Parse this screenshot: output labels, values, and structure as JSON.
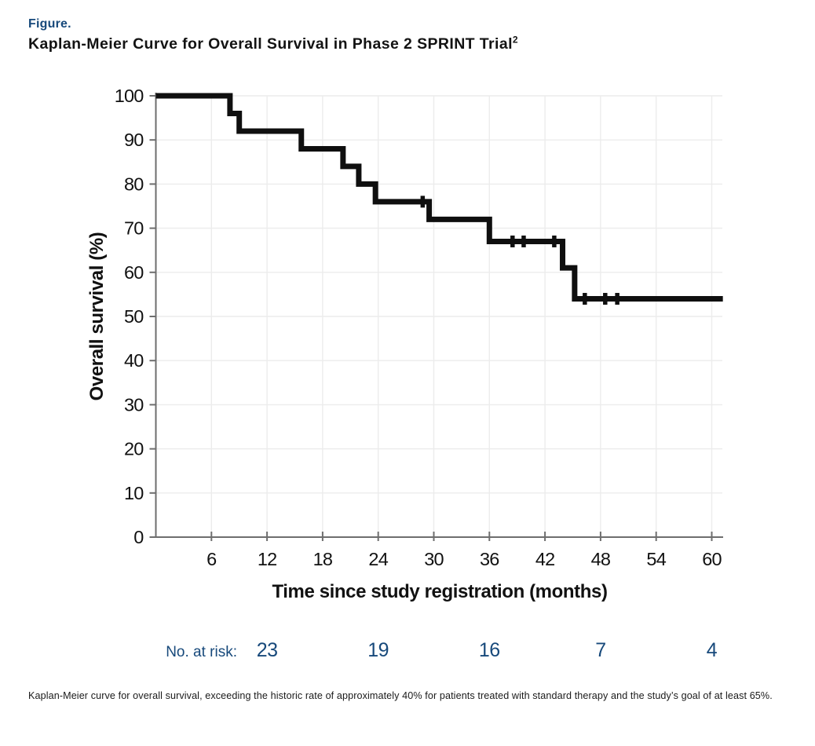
{
  "figure": {
    "label": "Figure.",
    "title": "Kaplan-Meier Curve for Overall Survival in Phase 2 SPRINT Trial",
    "title_reference_superscript": "2",
    "caption": "Kaplan-Meier curve for overall survival, exceeding the historic rate of approximately 40% for patients treated with standard therapy and the study’s goal of at least 65%."
  },
  "colors": {
    "accent_navy": "#17497B",
    "curve_black": "#0F0F0F",
    "gridline_gray": "#ECECEC",
    "axis_gray": "#6E6E6E"
  },
  "chart_data": {
    "type": "line",
    "step": "post",
    "title": "Kaplan-Meier Curve for Overall Survival in Phase 2 SPRINT Trial",
    "xlabel": "Time since study registration (months)",
    "ylabel": "Overall survival (%)",
    "xlim": [
      0,
      61.5
    ],
    "ylim": [
      0,
      100
    ],
    "x_ticks": [
      6,
      12,
      18,
      24,
      30,
      36,
      42,
      48,
      54,
      60
    ],
    "y_ticks": [
      0,
      10,
      20,
      30,
      40,
      50,
      60,
      70,
      80,
      90,
      100
    ],
    "grid": true,
    "legend": "none",
    "series": [
      {
        "name": "Overall survival",
        "event_times": [
          0,
          8,
          9,
          15.7,
          20.2,
          21.9,
          23.7,
          29.5,
          36,
          43.9,
          45.2
        ],
        "survival_pct": [
          100,
          96,
          92,
          88,
          84,
          80,
          76,
          72,
          67,
          61,
          54
        ],
        "end_time": 61.2,
        "censor_marks": [
          {
            "t": 28.8,
            "s": 76
          },
          {
            "t": 38.5,
            "s": 67
          },
          {
            "t": 39.7,
            "s": 67
          },
          {
            "t": 43.0,
            "s": 67
          },
          {
            "t": 46.3,
            "s": 54
          },
          {
            "t": 48.5,
            "s": 54
          },
          {
            "t": 49.8,
            "s": 54
          }
        ]
      }
    ],
    "at_risk": {
      "label": "No. at risk:",
      "times": [
        12,
        24,
        36,
        48,
        60
      ],
      "counts": [
        23,
        19,
        16,
        7,
        4
      ]
    }
  }
}
